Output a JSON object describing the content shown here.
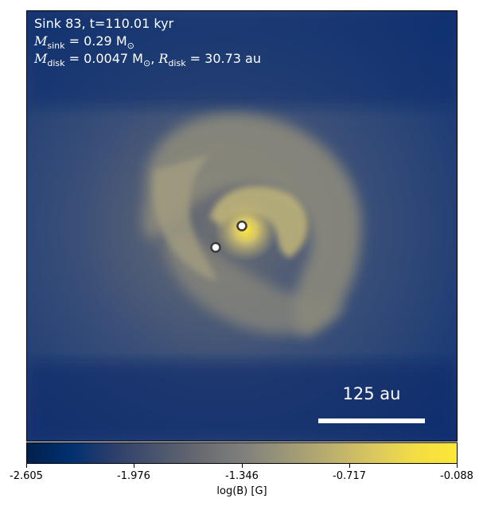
{
  "annotation": {
    "line1": "Sink 83, t=110.01 kyr",
    "msink_symbol": "M",
    "msink_sub": "sink",
    "msink_value": " = 0.29 M",
    "msink_unit_sub": "⊙",
    "mdisk_symbol": "M",
    "mdisk_sub": "disk",
    "mdisk_value": " = 0.0047 M",
    "mdisk_unit_sub": "⊙",
    "separator": ", ",
    "rdisk_symbol": "R",
    "rdisk_sub": "disk",
    "rdisk_value": " = 30.73 au"
  },
  "scale_bar": {
    "label": "125 au"
  },
  "colorbar": {
    "ticks": [
      "-2.605",
      "-1.976",
      "-1.346",
      "-0.717",
      "-0.088"
    ],
    "label": "log(B) [G]"
  },
  "colors": {
    "low": "#00204c",
    "mid": "#7f7f7c",
    "high": "#fde737"
  }
}
